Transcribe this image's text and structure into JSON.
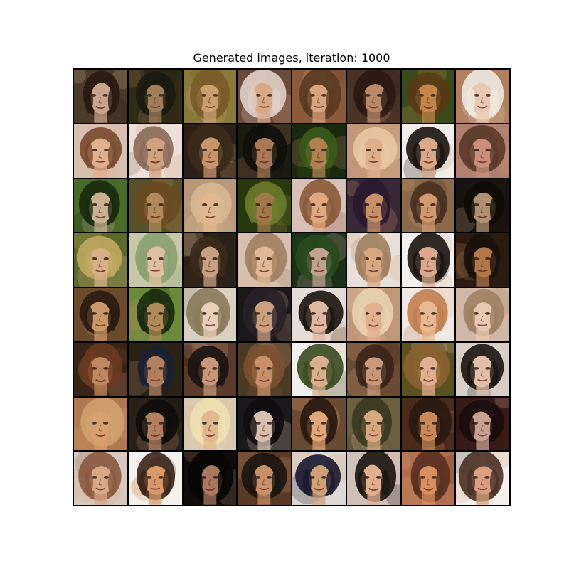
{
  "title": "Generated images, iteration: 1000",
  "grid": {
    "rows": 8,
    "cols": 8,
    "tiles": [
      {
        "bg": "#4a3a2a",
        "hair": "#2a1a12",
        "skin": "#c9a48a"
      },
      {
        "bg": "#2f2a14",
        "hair": "#1a1a0f",
        "skin": "#a07e5a"
      },
      {
        "bg": "#8a7a3a",
        "hair": "#7a5a2a",
        "skin": "#c8a070"
      },
      {
        "bg": "#6a4a3a",
        "hair": "#e0d0c8",
        "skin": "#d8a888"
      },
      {
        "bg": "#8a5a3a",
        "hair": "#5a3a22",
        "skin": "#d9a37f"
      },
      {
        "bg": "#4a3224",
        "hair": "#2a1812",
        "skin": "#b98a6a"
      },
      {
        "bg": "#3a4a1a",
        "hair": "#5a3a14",
        "skin": "#c0864a"
      },
      {
        "bg": "#b08060",
        "hair": "#f0e8e0",
        "skin": "#e8c8b0"
      },
      {
        "bg": "#d8c0b0",
        "hair": "#7a4a30",
        "skin": "#e0b090"
      },
      {
        "bg": "#eee0d8",
        "hair": "#8a6a5a",
        "skin": "#d0a080"
      },
      {
        "bg": "#2a2018",
        "hair": "#3a2a1a",
        "skin": "#c8946a"
      },
      {
        "bg": "#1a1a10",
        "hair": "#0f0f0a",
        "skin": "#a87858"
      },
      {
        "bg": "#1a2810",
        "hair": "#3a5a1a",
        "skin": "#b08050"
      },
      {
        "bg": "#c09878",
        "hair": "#e8c8a0",
        "skin": "#dcb08a"
      },
      {
        "bg": "#f0ece8",
        "hair": "#1a1410",
        "skin": "#d8a888"
      },
      {
        "bg": "#b08070",
        "hair": "#5a3a2a",
        "skin": "#c8907a"
      },
      {
        "bg": "#4a6a2a",
        "hair": "#1a2a10",
        "skin": "#c8b090"
      },
      {
        "bg": "#5a5028",
        "hair": "#6a4a20",
        "skin": "#b08a5a"
      },
      {
        "bg": "#b89878",
        "hair": "#d8b890",
        "skin": "#e0b890"
      },
      {
        "bg": "#2a3810",
        "hair": "#6a7a2a",
        "skin": "#a0784a"
      },
      {
        "bg": "#d8c0b8",
        "hair": "#8a5a3a",
        "skin": "#e0a880"
      },
      {
        "bg": "#3a2838",
        "hair": "#2a1830",
        "skin": "#c89068"
      },
      {
        "bg": "#8a6a4a",
        "hair": "#4a3020",
        "skin": "#d09a70"
      },
      {
        "bg": "#1a1410",
        "hair": "#0f0c08",
        "skin": "#b09070"
      },
      {
        "bg": "#5a6a2a",
        "hair": "#c0a860",
        "skin": "#d8b088"
      },
      {
        "bg": "#c8c8a8",
        "hair": "#8aa070",
        "skin": "#e0c0a0"
      },
      {
        "bg": "#2a2218",
        "hair": "#3a2a18",
        "skin": "#c8a080"
      },
      {
        "bg": "#d8c0b0",
        "hair": "#a08060",
        "skin": "#e0b898"
      },
      {
        "bg": "#1a3018",
        "hair": "#2a4a20",
        "skin": "#c0a090"
      },
      {
        "bg": "#e8e0d8",
        "hair": "#a08060",
        "skin": "#d8a880"
      },
      {
        "bg": "#f4f0ee",
        "hair": "#1a1410",
        "skin": "#d8a890"
      },
      {
        "bg": "#2a1a10",
        "hair": "#1a100a",
        "skin": "#b0784a"
      },
      {
        "bg": "#6a4a2a",
        "hair": "#2a1a10",
        "skin": "#c89868"
      },
      {
        "bg": "#6a8a3a",
        "hair": "#1a2a10",
        "skin": "#b08a58"
      },
      {
        "bg": "#d8d0c0",
        "hair": "#8a7a5a",
        "skin": "#e8d0b8"
      },
      {
        "bg": "#1a1818",
        "hair": "#2a2028",
        "skin": "#c8a080"
      },
      {
        "bg": "#e8dcd8",
        "hair": "#1a1410",
        "skin": "#e0b8a0"
      },
      {
        "bg": "#c09878",
        "hair": "#e8d0b0",
        "skin": "#e0b090"
      },
      {
        "bg": "#f0e8e4",
        "hair": "#c08050",
        "skin": "#e8b890"
      },
      {
        "bg": "#d0b8a8",
        "hair": "#a08060",
        "skin": "#e8c8b0"
      },
      {
        "bg": "#3a2418",
        "hair": "#6a3a20",
        "skin": "#c08860"
      },
      {
        "bg": "#2a2214",
        "hair": "#1a2030",
        "skin": "#b08060"
      },
      {
        "bg": "#5a3a2a",
        "hair": "#1a1410",
        "skin": "#c89878"
      },
      {
        "bg": "#4a3a24",
        "hair": "#7a5030",
        "skin": "#c89068"
      },
      {
        "bg": "#f0f0ec",
        "hair": "#3a4a20",
        "skin": "#d8b090"
      },
      {
        "bg": "#6a4a30",
        "hair": "#3a2418",
        "skin": "#c89878"
      },
      {
        "bg": "#5a5020",
        "hair": "#8a6030",
        "skin": "#e0b090"
      },
      {
        "bg": "#d8d0c8",
        "hair": "#1a1410",
        "skin": "#e0c0a8"
      },
      {
        "bg": "#b07850",
        "hair": "#d0a070",
        "skin": "#d8a070"
      },
      {
        "bg": "#2a2018",
        "hair": "#0f0c0a",
        "skin": "#b08060"
      },
      {
        "bg": "#d8c8b0",
        "hair": "#f0e0b0",
        "skin": "#e0b890"
      },
      {
        "bg": "#1a1818",
        "hair": "#0f0c10",
        "skin": "#d8c0b0"
      },
      {
        "bg": "#6a4a30",
        "hair": "#2a1a10",
        "skin": "#e0a878"
      },
      {
        "bg": "#6a6040",
        "hair": "#3a3a20",
        "skin": "#d8a880"
      },
      {
        "bg": "#4a2a18",
        "hair": "#2a1810",
        "skin": "#c88858"
      },
      {
        "bg": "#3a1a18",
        "hair": "#1a0c0c",
        "skin": "#c8a090"
      },
      {
        "bg": "#d8c8c0",
        "hair": "#8a5a40",
        "skin": "#d8a888"
      },
      {
        "bg": "#f4f0ec",
        "hair": "#3a2418",
        "skin": "#d89a6a"
      },
      {
        "bg": "#0f0c0a",
        "hair": "#080604",
        "skin": "#a87860"
      },
      {
        "bg": "#5a3a24",
        "hair": "#1a1410",
        "skin": "#c89068"
      },
      {
        "bg": "#e0d8d4",
        "hair": "#1a1830",
        "skin": "#d0a078"
      },
      {
        "bg": "#d0c0b8",
        "hair": "#1a1410",
        "skin": "#e0b090"
      },
      {
        "bg": "#b07050",
        "hair": "#5a3020",
        "skin": "#d89060"
      },
      {
        "bg": "#f4f0ee",
        "hair": "#4a3024",
        "skin": "#d8a080"
      }
    ]
  }
}
